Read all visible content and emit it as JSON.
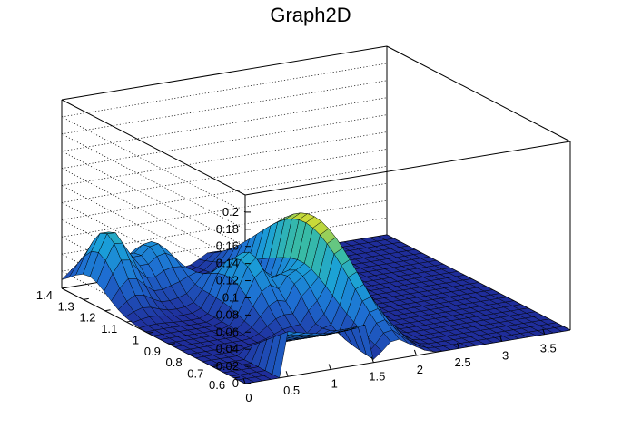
{
  "chart_data": {
    "type": "surface3d",
    "title": "Graph2D",
    "xlabel": "",
    "ylabel": "",
    "zlabel": "",
    "xlim": [
      0,
      3.8
    ],
    "ylim": [
      0.55,
      1.4
    ],
    "zlim": [
      0,
      0.22
    ],
    "x_ticks": [
      "0",
      "0.5",
      "1",
      "1.5",
      "2",
      "2.5",
      "3",
      "3.5"
    ],
    "y_ticks": [
      "0.6",
      "0.7",
      "0.8",
      "0.9",
      "1",
      "1.1",
      "1.2",
      "1.3",
      "1.4"
    ],
    "z_ticks": [
      "0",
      "0.02",
      "0.04",
      "0.06",
      "0.08",
      "0.1",
      "0.12",
      "0.14",
      "0.16",
      "0.18",
      "0.2"
    ],
    "grid": true,
    "colormap": "viridis-like (dark blue to yellow)",
    "colors": {
      "low": "#1f2d9a",
      "mid": "#1aa0d8",
      "high": "#f3e52c"
    },
    "features": {
      "near_wall": {
        "x_range": [
          0.45,
          1.4
        ],
        "y_range": [
          0.55,
          0.78
        ],
        "peak_z": 0.06
      },
      "left_ridge": {
        "x_range": [
          0,
          1.0
        ],
        "y_range": [
          1.1,
          1.4
        ],
        "peak_z": 0.085
      },
      "center_bumps": {
        "x_range": [
          0.9,
          1.5
        ],
        "y_range": [
          0.8,
          1.2
        ],
        "peak_z": 0.07
      },
      "right_peak": {
        "x": 1.75,
        "y": 0.95,
        "peak_z": 0.115
      },
      "flat_region": {
        "x_range": [
          2.0,
          3.8
        ],
        "z": 0.0
      }
    }
  }
}
